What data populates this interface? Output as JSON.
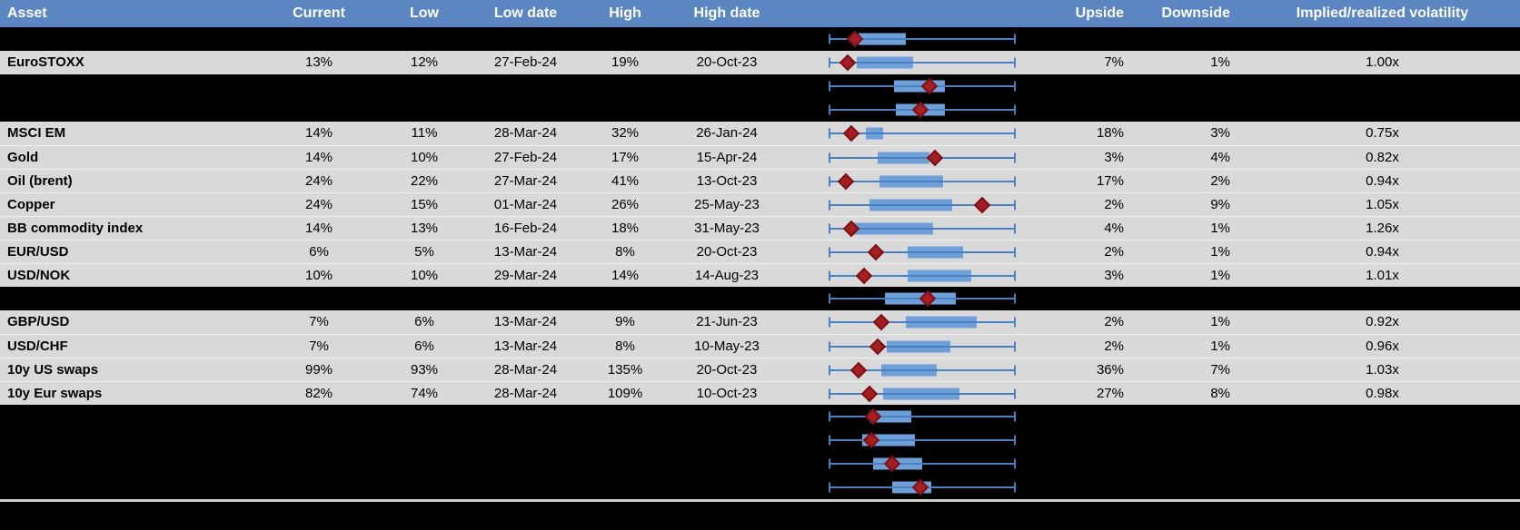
{
  "header": {
    "labels": {
      "asset": "Asset",
      "current": "Current",
      "low": "Low",
      "low_date": "Low date",
      "high": "High",
      "high_date": "High date",
      "chart": "",
      "upside": "Upside",
      "downside": "Downside",
      "implied": "Implied/realized volatility"
    }
  },
  "colors": {
    "header_bg": "#5b86c2",
    "header_text": "#ffffff",
    "row_gray_bg": "#d9d9d9",
    "row_hidden_bg": "#000000",
    "whisker_blue": "#4a7fc1",
    "box_blue": "#6f9fd9",
    "diamond_red": "#a51e23",
    "diamond_border": "#7c1113",
    "footer_line": "#cfcfcf",
    "text": "#000000"
  },
  "chart_data": {
    "type": "table",
    "subtype": "boxplot-range-per-row",
    "description": "Implied volatility table: whisker spans 1y low-high range, blue box is interquartile band, red diamond marks current level. box and diamond values are fractions of the low-high whisker span. Hidden (black) rows show charts only.",
    "columns": [
      "Asset",
      "Current",
      "Low",
      "Low date",
      "High",
      "High date",
      "Range chart",
      "Upside",
      "Downside",
      "Implied/realized volatility"
    ],
    "rows": [
      {
        "type": "hidden",
        "chart": {
          "box": [
            0.16,
            0.41
          ],
          "diamond": 0.14
        }
      },
      {
        "type": "data",
        "asset": "EuroSTOXX",
        "current": "13%",
        "low": "12%",
        "low_date": "27-Feb-24",
        "high": "19%",
        "high_date": "20-Oct-23",
        "upside": "7%",
        "downside": "1%",
        "implied": "1.00x",
        "chart": {
          "box": [
            0.15,
            0.45
          ],
          "diamond": 0.1
        }
      },
      {
        "type": "hidden",
        "chart": {
          "box": [
            0.35,
            0.62
          ],
          "diamond": 0.54
        }
      },
      {
        "type": "hidden",
        "chart": {
          "box": [
            0.36,
            0.62
          ],
          "diamond": 0.49
        }
      },
      {
        "type": "data",
        "asset": "MSCI EM",
        "current": "14%",
        "low": "11%",
        "low_date": "28-Mar-24",
        "high": "32%",
        "high_date": "26-Jan-24",
        "upside": "18%",
        "downside": "3%",
        "implied": "0.75x",
        "chart": {
          "box": [
            0.2,
            0.29
          ],
          "diamond": 0.12
        }
      },
      {
        "type": "data",
        "asset": "Gold",
        "current": "14%",
        "low": "10%",
        "low_date": "27-Feb-24",
        "high": "17%",
        "high_date": "15-Apr-24",
        "upside": "3%",
        "downside": "4%",
        "implied": "0.82x",
        "chart": {
          "box": [
            0.26,
            0.54
          ],
          "diamond": 0.57
        }
      },
      {
        "type": "data",
        "asset": "Oil (brent)",
        "current": "24%",
        "low": "22%",
        "low_date": "27-Mar-24",
        "high": "41%",
        "high_date": "13-Oct-23",
        "upside": "17%",
        "downside": "2%",
        "implied": "0.94x",
        "chart": {
          "box": [
            0.27,
            0.61
          ],
          "diamond": 0.09
        }
      },
      {
        "type": "data",
        "asset": "Copper",
        "current": "24%",
        "low": "15%",
        "low_date": "01-Mar-24",
        "high": "26%",
        "high_date": "25-May-23",
        "upside": "2%",
        "downside": "9%",
        "implied": "1.05x",
        "chart": {
          "box": [
            0.22,
            0.66
          ],
          "diamond": 0.82
        }
      },
      {
        "type": "data",
        "asset": "BB commodity index",
        "current": "14%",
        "low": "13%",
        "low_date": "16-Feb-24",
        "high": "18%",
        "high_date": "31-May-23",
        "upside": "4%",
        "downside": "1%",
        "implied": "1.26x",
        "chart": {
          "box": [
            0.13,
            0.56
          ],
          "diamond": 0.12
        }
      },
      {
        "type": "data",
        "asset": "EUR/USD",
        "current": "6%",
        "low": "5%",
        "low_date": "13-Mar-24",
        "high": "8%",
        "high_date": "20-Oct-23",
        "upside": "2%",
        "downside": "1%",
        "implied": "0.94x",
        "chart": {
          "box": [
            0.42,
            0.72
          ],
          "diamond": 0.25
        }
      },
      {
        "type": "data",
        "asset": "USD/NOK",
        "current": "10%",
        "low": "10%",
        "low_date": "29-Mar-24",
        "high": "14%",
        "high_date": "14-Aug-23",
        "upside": "3%",
        "downside": "1%",
        "implied": "1.01x",
        "chart": {
          "box": [
            0.42,
            0.76
          ],
          "diamond": 0.19
        }
      },
      {
        "type": "hidden",
        "chart": {
          "box": [
            0.3,
            0.68
          ],
          "diamond": 0.53
        }
      },
      {
        "type": "data",
        "asset": "GBP/USD",
        "current": "7%",
        "low": "6%",
        "low_date": "13-Mar-24",
        "high": "9%",
        "high_date": "21-Jun-23",
        "upside": "2%",
        "downside": "1%",
        "implied": "0.92x",
        "chart": {
          "box": [
            0.41,
            0.79
          ],
          "diamond": 0.28
        }
      },
      {
        "type": "data",
        "asset": "USD/CHF",
        "current": "7%",
        "low": "6%",
        "low_date": "13-Mar-24",
        "high": "8%",
        "high_date": "10-May-23",
        "upside": "2%",
        "downside": "1%",
        "implied": "0.96x",
        "chart": {
          "box": [
            0.31,
            0.65
          ],
          "diamond": 0.26
        }
      },
      {
        "type": "data",
        "asset": "10y US swaps",
        "current": "99%",
        "low": "93%",
        "low_date": "28-Mar-24",
        "high": "135%",
        "high_date": "20-Oct-23",
        "upside": "36%",
        "downside": "7%",
        "implied": "1.03x",
        "chart": {
          "box": [
            0.28,
            0.58
          ],
          "diamond": 0.16
        }
      },
      {
        "type": "data",
        "asset": "10y Eur swaps",
        "current": "82%",
        "low": "74%",
        "low_date": "28-Mar-24",
        "high": "109%",
        "high_date": "10-Oct-23",
        "upside": "27%",
        "downside": "8%",
        "implied": "0.98x",
        "chart": {
          "box": [
            0.29,
            0.7
          ],
          "diamond": 0.22
        }
      },
      {
        "type": "hidden",
        "chart": {
          "box": [
            0.22,
            0.44
          ],
          "diamond": 0.24
        }
      },
      {
        "type": "hidden",
        "chart": {
          "box": [
            0.18,
            0.46
          ],
          "diamond": 0.23
        }
      },
      {
        "type": "hidden",
        "chart": {
          "box": [
            0.24,
            0.5
          ],
          "diamond": 0.34
        }
      },
      {
        "type": "hidden",
        "chart": {
          "box": [
            0.34,
            0.55
          ],
          "diamond": 0.49
        }
      }
    ]
  }
}
